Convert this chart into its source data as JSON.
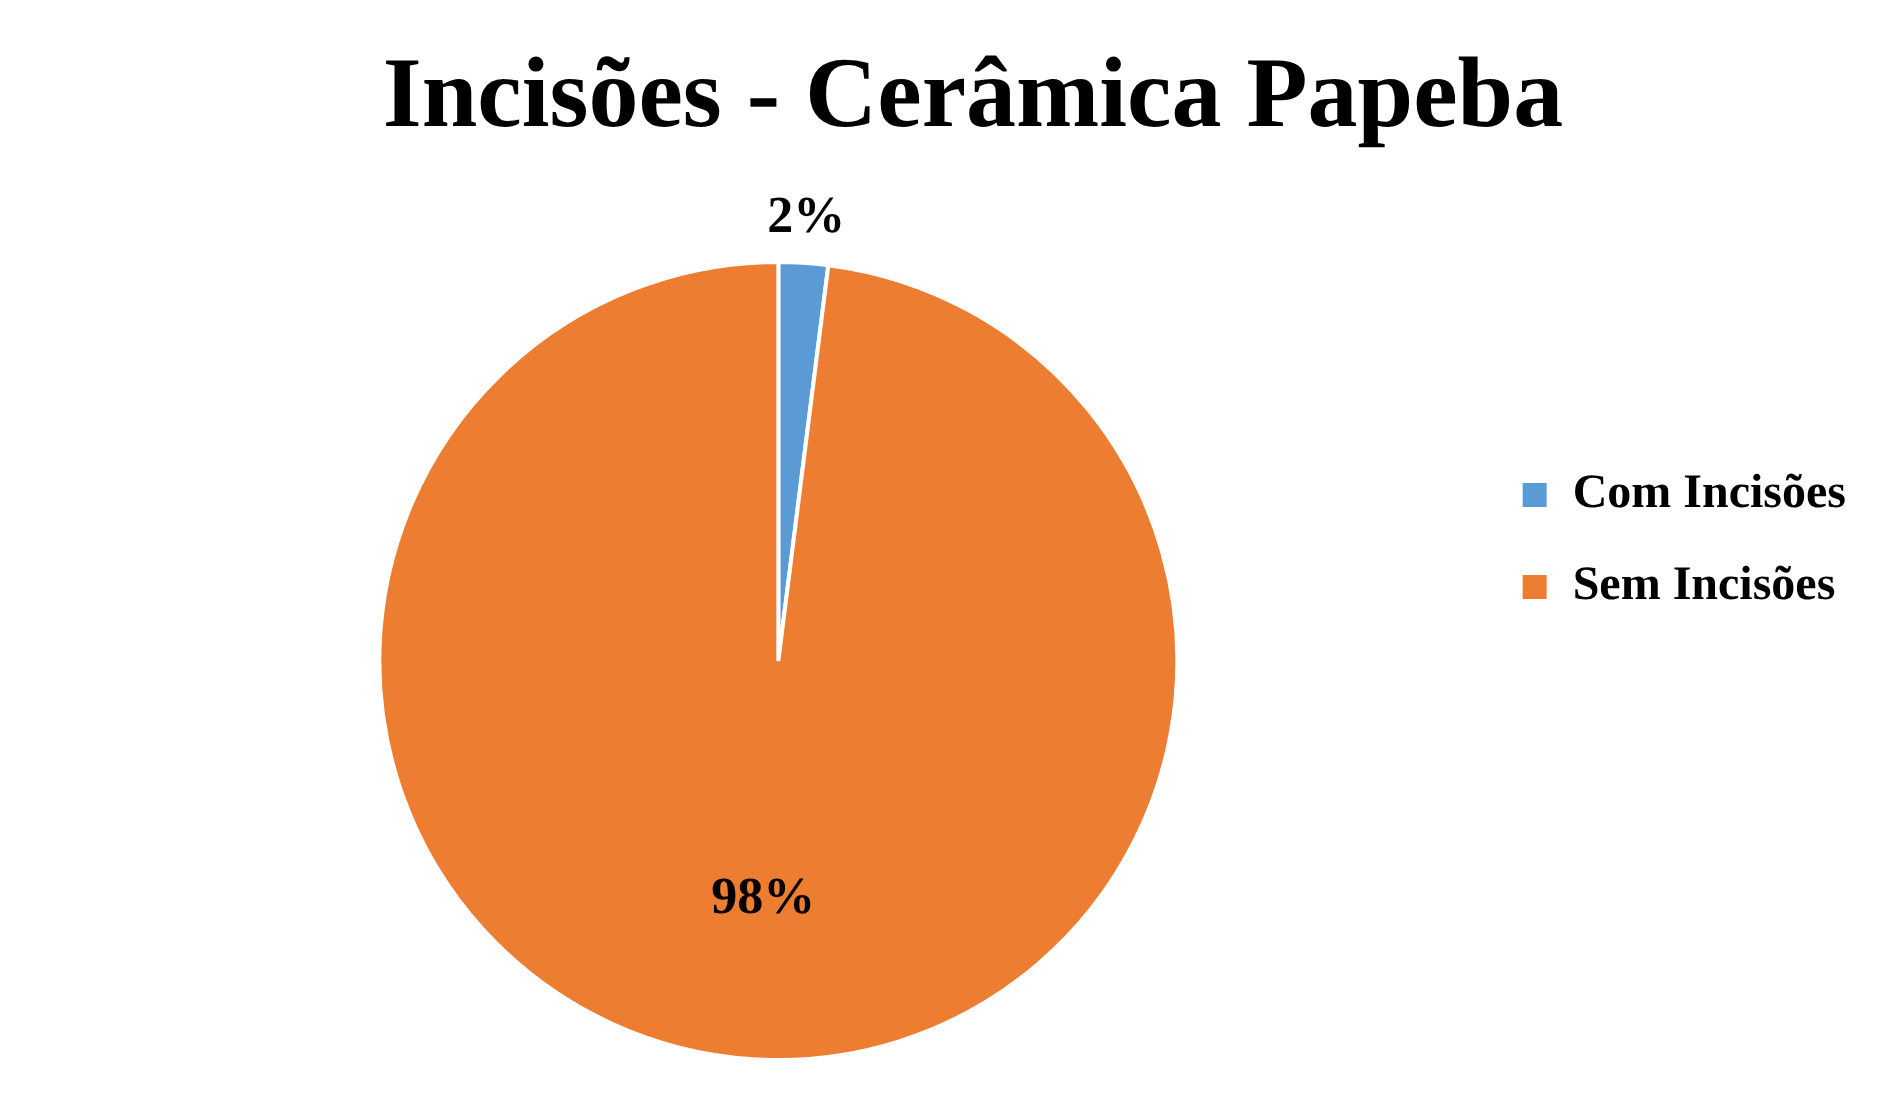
{
  "chart_data": {
    "type": "pie",
    "title": "Incisões - Cerâmica Papeba",
    "categories": [
      "Com Incisões",
      "Sem Incisões"
    ],
    "values": [
      2,
      98
    ],
    "colors": [
      "#5b9bd5",
      "#ed7d31"
    ],
    "value_labels": [
      "2%",
      "98%"
    ],
    "legend": "right"
  }
}
